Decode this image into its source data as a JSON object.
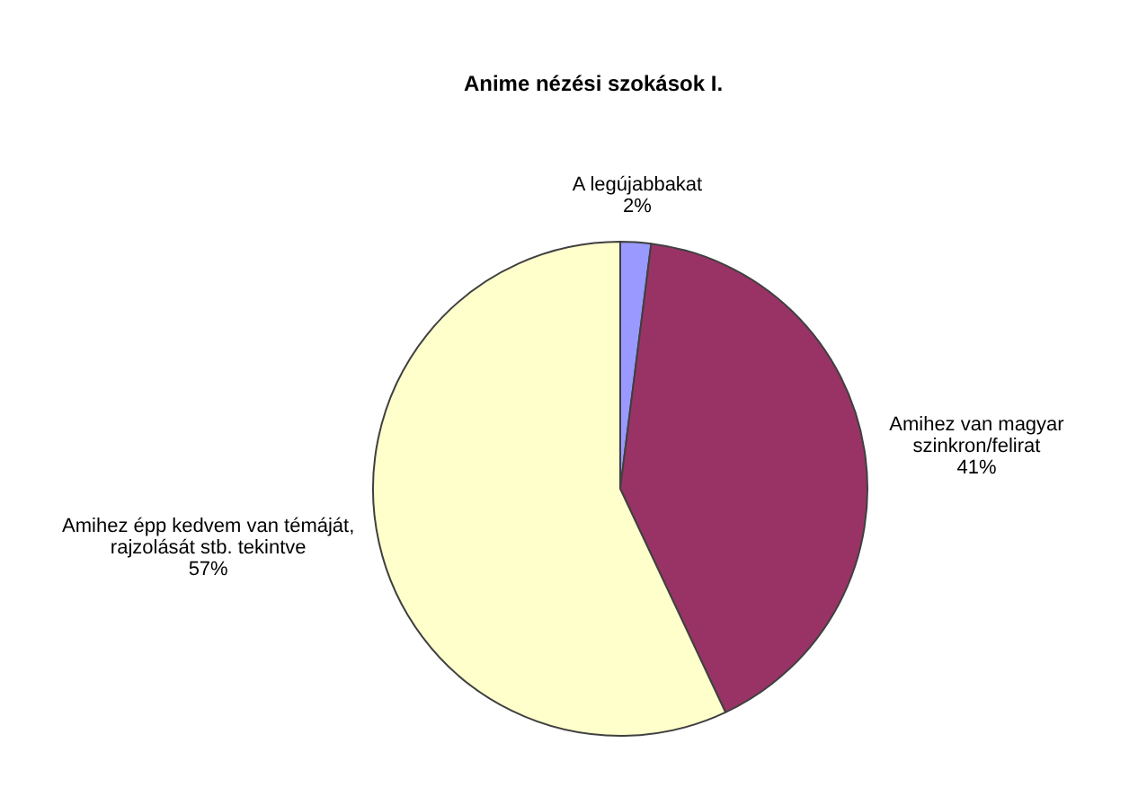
{
  "chart_data": {
    "type": "pie",
    "title": "Anime nézési szokások I.",
    "categories": [
      "A legújabbakat",
      "Amihez van magyar szinkron/felirat",
      "Amihez épp kedvem van témáját, rajzolását stb. tekintve"
    ],
    "values": [
      2,
      41,
      57
    ],
    "value_labels": [
      "2%",
      "41%",
      "57%"
    ],
    "colors": [
      "#9999ff",
      "#993366",
      "#ffffcc"
    ],
    "legend": false
  }
}
